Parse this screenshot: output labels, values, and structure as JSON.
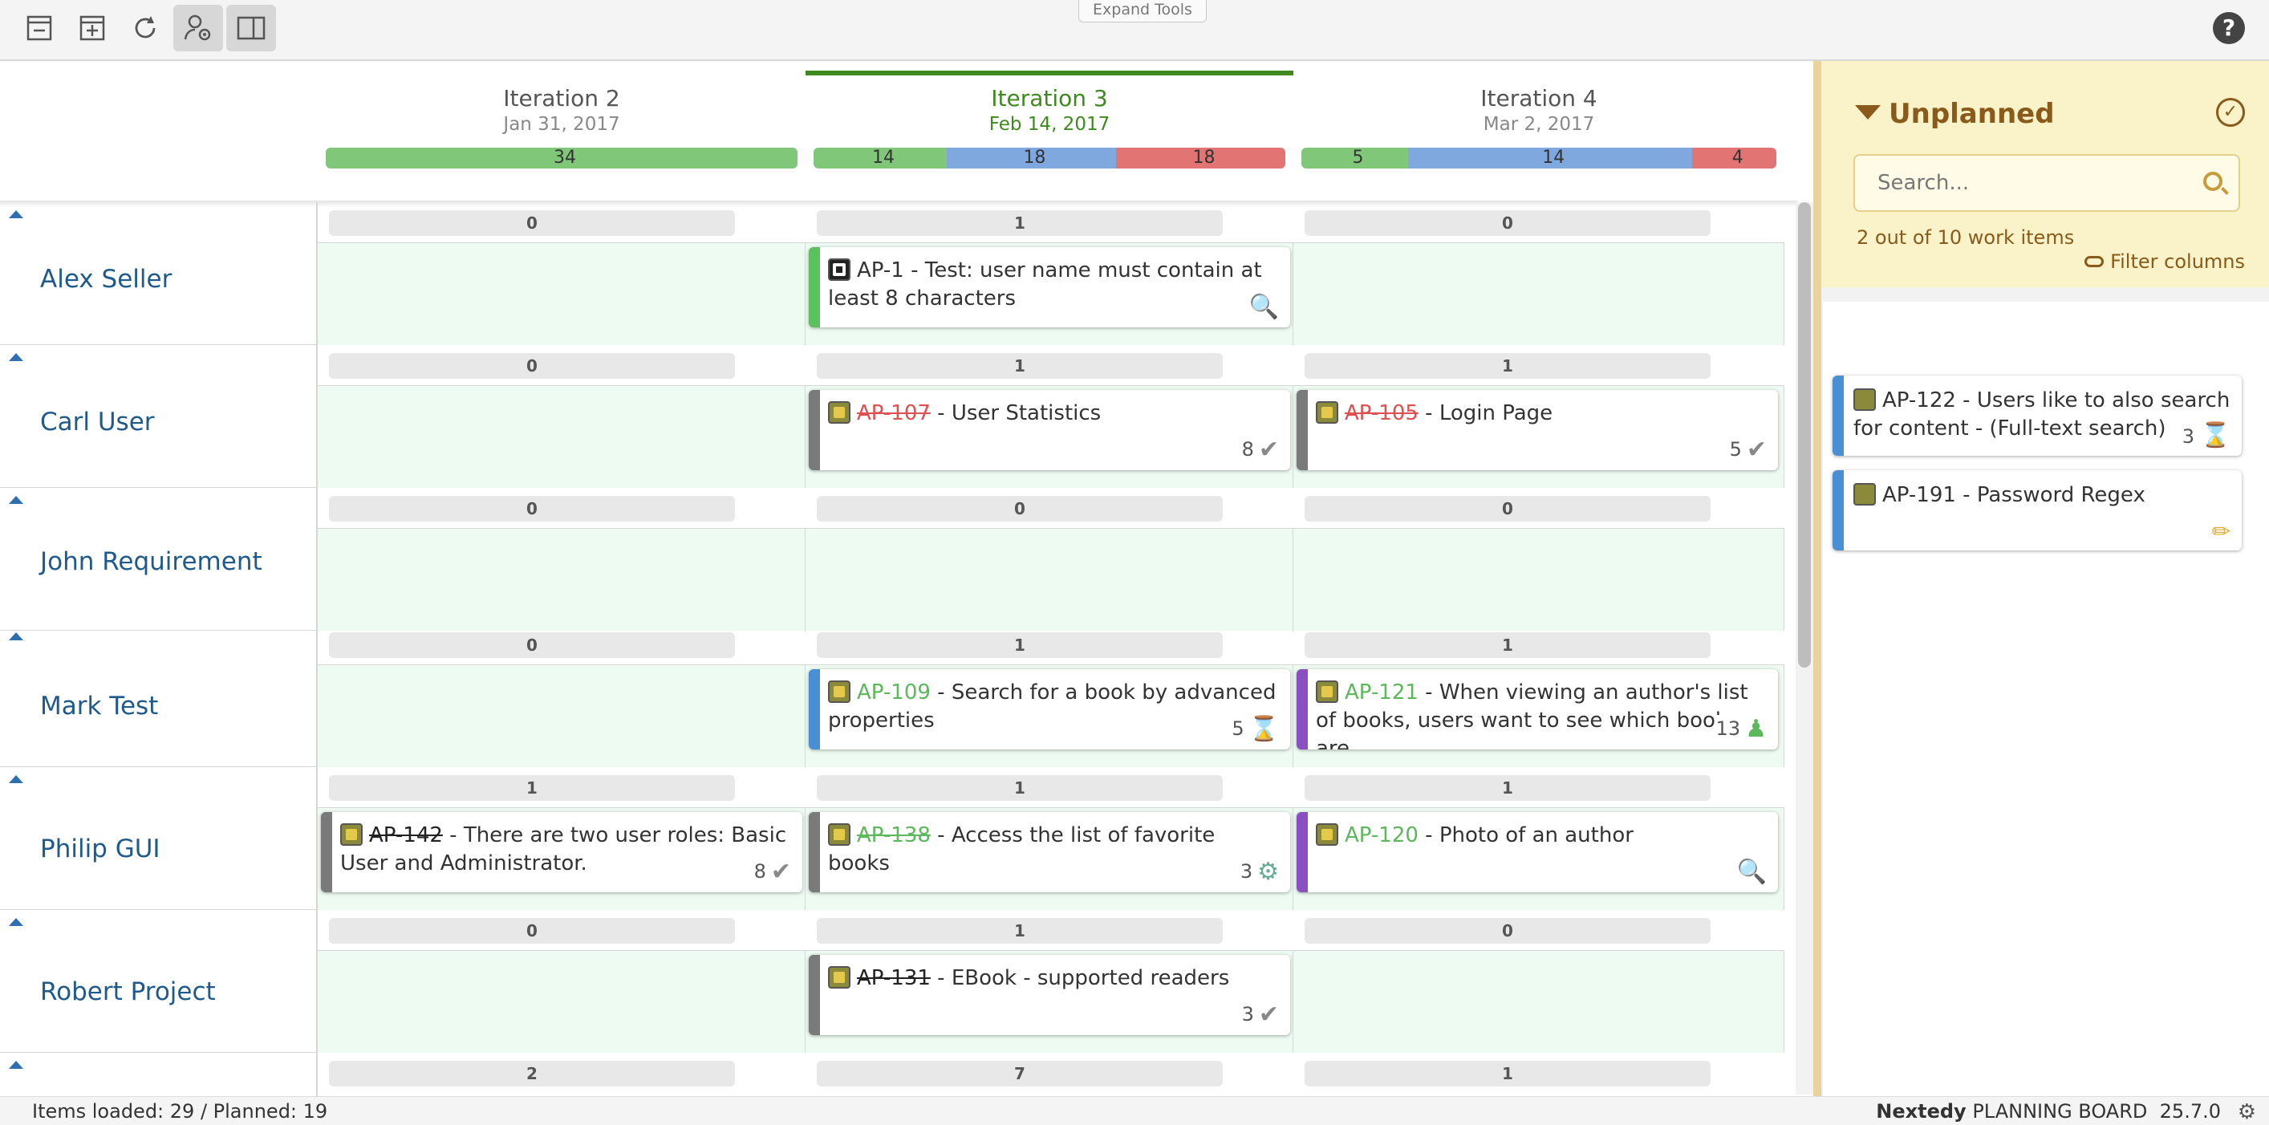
{
  "toolbar": {
    "expand_tools_label": "Expand Tools",
    "help_label": "?"
  },
  "columns": [
    {
      "name": "Iteration 2",
      "date": "Jan 31, 2017",
      "capacity": [
        {
          "value": "34",
          "color": "green",
          "share": 1.0
        }
      ]
    },
    {
      "name": "Iteration 3",
      "date": "Feb 14, 2017",
      "capacity": [
        {
          "value": "14",
          "color": "green",
          "share": 0.28
        },
        {
          "value": "18",
          "color": "blue",
          "share": 0.36
        },
        {
          "value": "18",
          "color": "red",
          "share": 0.36
        }
      ]
    },
    {
      "name": "Iteration 4",
      "date": "Mar 2, 2017",
      "capacity": [
        {
          "value": "5",
          "color": "green",
          "share": 0.22
        },
        {
          "value": "14",
          "color": "blue",
          "share": 0.61
        },
        {
          "value": "4",
          "color": "red",
          "share": 0.17
        }
      ]
    }
  ],
  "lanes": [
    {
      "name": "Alex Seller",
      "counts": [
        "0",
        "1",
        "0"
      ]
    },
    {
      "name": "Carl User",
      "counts": [
        "0",
        "1",
        "1"
      ]
    },
    {
      "name": "John Requirement",
      "counts": [
        "0",
        "0",
        "0"
      ]
    },
    {
      "name": "Mark Test",
      "counts": [
        "0",
        "1",
        "1"
      ]
    },
    {
      "name": "Philip GUI",
      "counts": [
        "1",
        "1",
        "1"
      ]
    },
    {
      "name": "Robert Project",
      "counts": [
        "0",
        "1",
        "0"
      ]
    },
    {
      "name": "",
      "counts": [
        "2",
        "7",
        "1"
      ]
    }
  ],
  "cards": {
    "ap1": {
      "key": "AP-1",
      "title": " - Test: user name must contain at least 8 characters"
    },
    "ap107": {
      "key": "AP-107",
      "title": " - User Statistics",
      "points": "8"
    },
    "ap105": {
      "key": "AP-105",
      "title": " - Login Page",
      "points": "5"
    },
    "ap109": {
      "key": "AP-109",
      "title": " - Search for a book by advanced properties",
      "points": "5"
    },
    "ap121": {
      "key": "AP-121",
      "title": " - When viewing an author's list of books, users want to see which books are",
      "points": "13"
    },
    "ap142": {
      "key": "AP-142",
      "title": " - There are two user roles: Basic User and Administrator.",
      "points": "8"
    },
    "ap138": {
      "key": "AP-138",
      "title": " - Access the list of favorite books",
      "points": "3"
    },
    "ap120": {
      "key": "AP-120",
      "title": " - Photo of an author"
    },
    "ap131": {
      "key": "AP-131",
      "title": " - EBook - supported readers",
      "points": "3"
    }
  },
  "sidebar": {
    "title": "Unplanned",
    "search_placeholder": "Search...",
    "count_text": "2 out of 10 work items",
    "filter_columns_label": "Filter columns",
    "items": [
      {
        "key": "AP-122",
        "title": " - Users like to also search for content - (Full-text search)",
        "points": "3"
      },
      {
        "key": "AP-191",
        "title": " - Password Regex"
      }
    ]
  },
  "footer": {
    "items_loaded": "Items loaded: 29  / Planned: 19",
    "brand": "Nextedy",
    "product": " PLANNING BOARD",
    "version": "25.7.0"
  },
  "colors": {
    "accent_green": "#3f8a1f",
    "lane_name": "#1f5a8c",
    "sidebar_bg": "#faf3c9",
    "capacity_green": "#80c77a",
    "capacity_blue": "#7fa8df",
    "capacity_red": "#e27573"
  }
}
